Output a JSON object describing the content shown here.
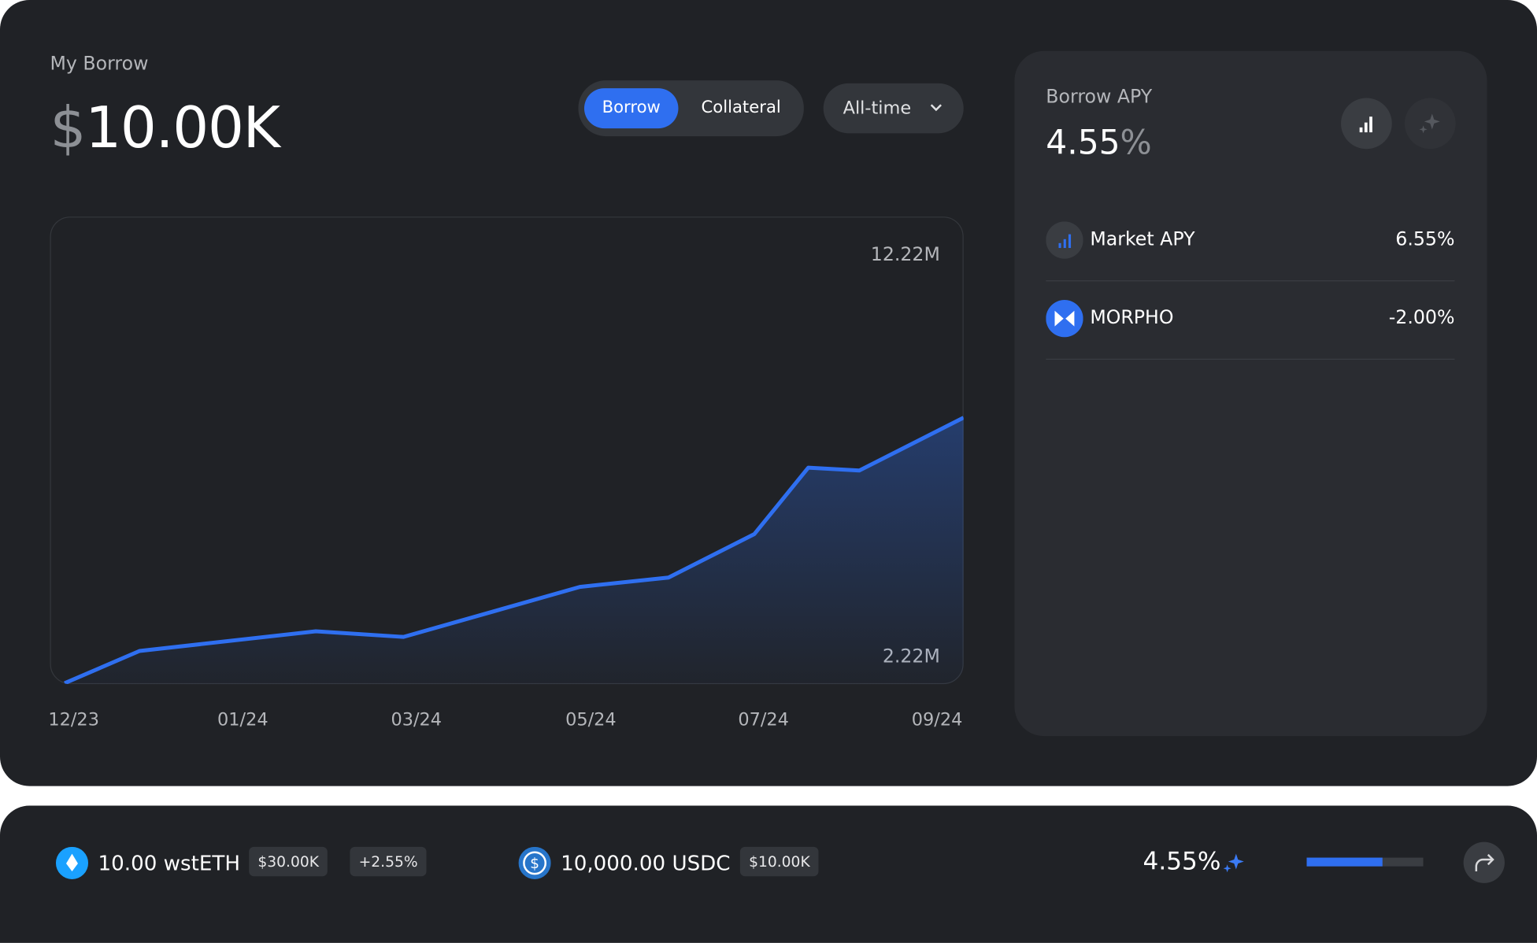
{
  "header": {
    "title": "My Borrow",
    "amount_currency": "$",
    "amount_value": "10.00K"
  },
  "tabs": [
    "Borrow",
    "Collateral"
  ],
  "range": "All-time",
  "chart_data": {
    "type": "line",
    "xlim": [
      0,
      100
    ],
    "ylim": [
      2.22,
      12.22
    ],
    "xticks": [
      {
        "value": 2.6,
        "label": "12/23"
      },
      {
        "value": 21.1,
        "label": "01/24"
      },
      {
        "value": 40.1,
        "label": "03/24"
      },
      {
        "value": 59.2,
        "label": "05/24"
      },
      {
        "value": 78.1,
        "label": "07/24"
      },
      {
        "value": 97.1,
        "label": "09/24"
      }
    ],
    "yticks": [
      {
        "value": 12.22,
        "label": "12.22M"
      },
      {
        "value": 2.22,
        "label": "2.22M"
      }
    ],
    "series": [
      {
        "color": "#2f6ff0",
        "x": [
          1.6,
          9.8,
          29.1,
          38.7,
          58.0,
          67.7,
          77.1,
          83.0,
          88.6,
          100
        ],
        "values": [
          2.24,
          2.93,
          3.35,
          3.23,
          4.3,
          4.5,
          5.43,
          6.85,
          6.79,
          7.92
        ]
      }
    ]
  },
  "apy": {
    "title": "Borrow APY",
    "value": "4.55",
    "unit": "%",
    "rows": [
      {
        "label": "Market APY",
        "value": "6.55%"
      },
      {
        "label": "MORPHO",
        "value": "-2.00%"
      }
    ]
  },
  "footer": {
    "collateral": "10.00 wstETH",
    "collateral_usd": "$30.00K",
    "collateral_change": "+2.55%",
    "loan": "10,000.00 USDC",
    "loan_usd": "$10.00K",
    "apy": "4.55%",
    "progress": 65
  }
}
